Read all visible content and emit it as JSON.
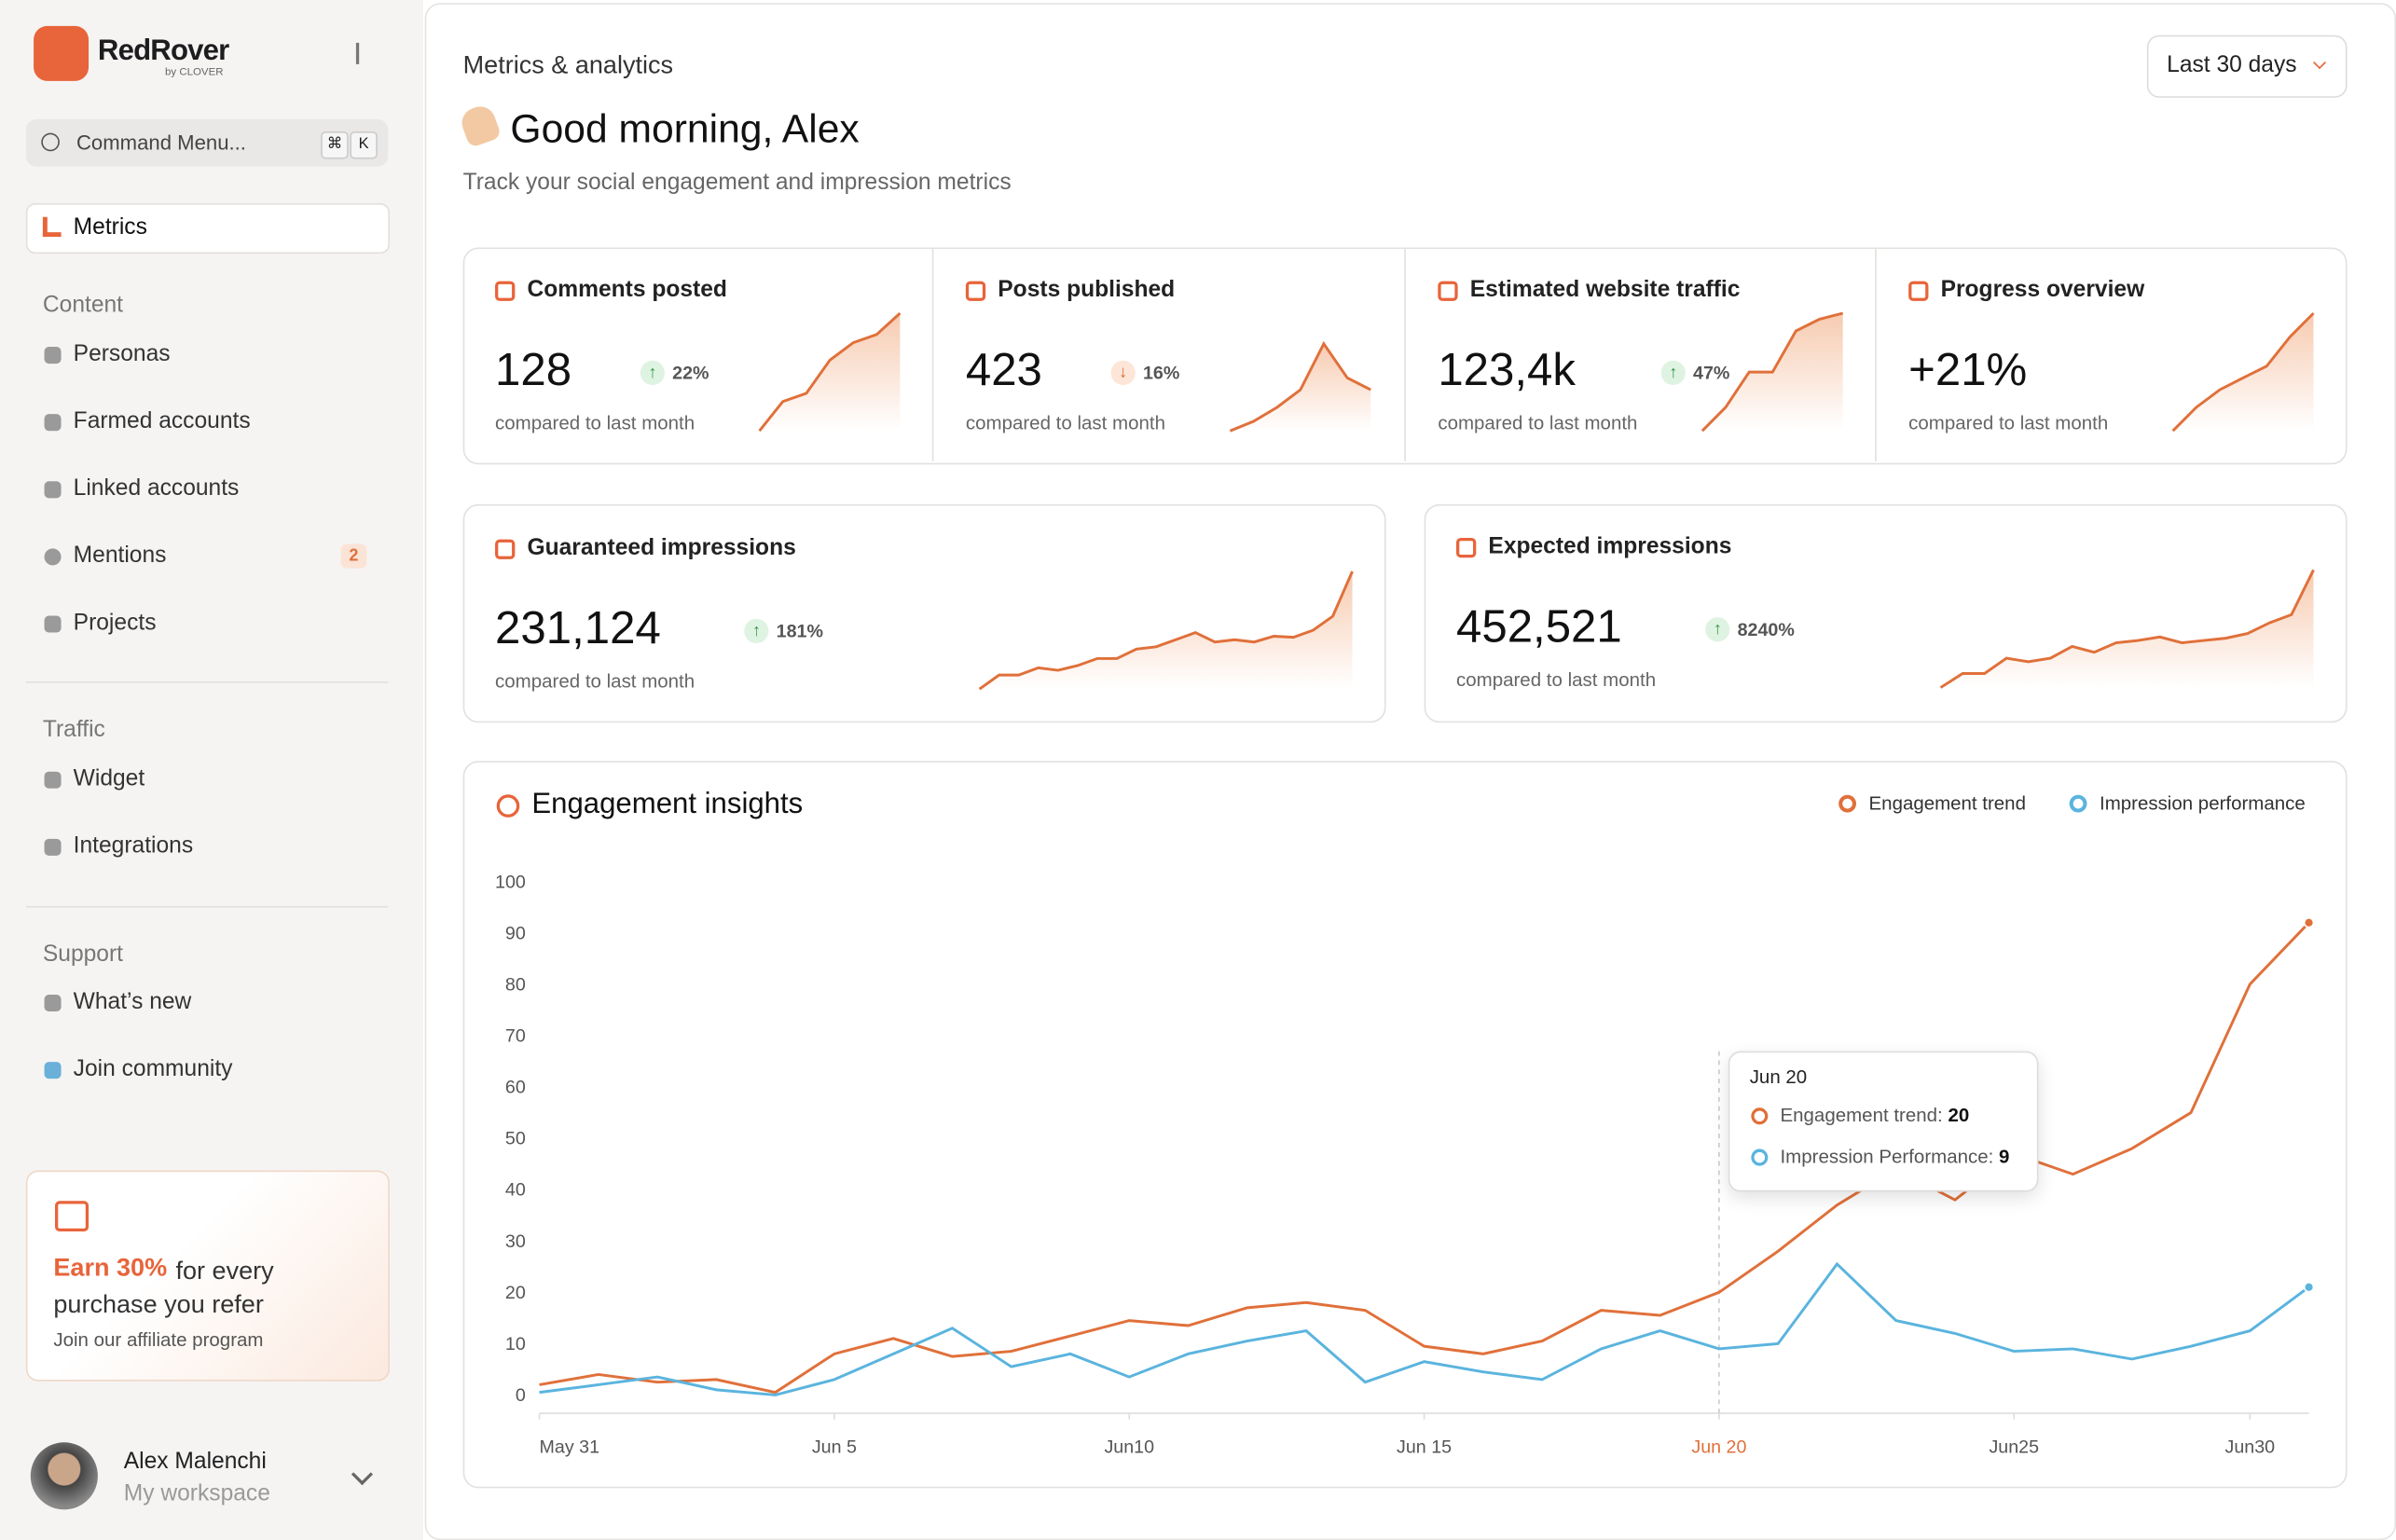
{
  "sidebar": {
    "brand": "RedRover",
    "brand_sub": "by CLOVER",
    "search": "Command Menu...",
    "keys": [
      "⌘",
      "K"
    ],
    "active": "Metrics",
    "sections": [
      {
        "title": "Content",
        "items": [
          "Personas",
          "Farmed accounts",
          "Linked accounts",
          "Mentions",
          "Projects"
        ]
      },
      {
        "title": "Traffic",
        "items": [
          "Widget",
          "Integrations"
        ]
      },
      {
        "title": "Support",
        "items": [
          "What’s new",
          "Join community"
        ]
      }
    ],
    "mentions_badge": "2",
    "promo": {
      "highlight": "Earn 30%",
      "text": "for every purchase you refer",
      "sub": "Join our affiliate program"
    },
    "user": {
      "name": "Alex Malenchi",
      "workspace": "My workspace"
    }
  },
  "header": {
    "breadcrumb": "Metrics & analytics",
    "greeting": "Good morning, Alex",
    "subtitle": "Track your social engagement and impression metrics",
    "range": "Last 30 days"
  },
  "kpis": [
    {
      "title": "Comments posted",
      "value": "128",
      "change": "22%",
      "direction": "up",
      "note": "compared to last month",
      "spark": [
        0,
        25,
        32,
        60,
        75,
        82,
        100
      ]
    },
    {
      "title": "Posts published",
      "value": "423",
      "change": "16%",
      "direction": "down",
      "note": "compared to last month",
      "spark": [
        0,
        8,
        20,
        35,
        74,
        45,
        35
      ]
    },
    {
      "title": "Estimated website traffic",
      "value": "123,4k",
      "change": "47%",
      "direction": "up",
      "note": "compared to last month",
      "spark": [
        0,
        20,
        50,
        50,
        85,
        95,
        100
      ]
    },
    {
      "title": "Progress overview",
      "value": "+21%",
      "note": "compared to last month",
      "spark": [
        0,
        20,
        35,
        45,
        55,
        80,
        100
      ]
    },
    {
      "title": "Guaranteed impressions",
      "value": "231,124",
      "change": "181%",
      "direction": "up",
      "note": "compared to last month",
      "spark": [
        0,
        12,
        12,
        18,
        16,
        20,
        26,
        26,
        34,
        36,
        42,
        48,
        40,
        42,
        40,
        45,
        44,
        50,
        62,
        100
      ]
    },
    {
      "title": "Expected impressions",
      "value": "452,521",
      "change": "8240%",
      "direction": "up",
      "note": "compared to last month",
      "spark": [
        0,
        12,
        12,
        25,
        22,
        25,
        35,
        30,
        38,
        40,
        43,
        38,
        40,
        42,
        46,
        55,
        62,
        100
      ]
    }
  ],
  "chart_data": {
    "type": "line",
    "title": "Engagement insights",
    "categories": [
      "May 31",
      null,
      null,
      null,
      null,
      "Jun 5",
      null,
      null,
      null,
      null,
      "Jun10",
      null,
      null,
      null,
      null,
      "Jun 15",
      null,
      null,
      null,
      null,
      "Jun 20",
      null,
      null,
      null,
      null,
      "Jun25",
      null,
      null,
      null,
      "Jun30",
      null
    ],
    "series": [
      {
        "name": "Engagement trend",
        "color": "#e0703a",
        "values": [
          2,
          4,
          2.5,
          3,
          0.5,
          8,
          11,
          7.5,
          8.5,
          11.5,
          14.5,
          13.5,
          17,
          18,
          16.5,
          9.5,
          8,
          10.5,
          16.5,
          15.5,
          20,
          28,
          37,
          44,
          38,
          47,
          43,
          48,
          55,
          80,
          92
        ]
      },
      {
        "name": "Impression performance",
        "color": "#5ab4de",
        "values": [
          0.5,
          2,
          3.5,
          1,
          0,
          3,
          8,
          13,
          5.5,
          8,
          3.5,
          8,
          10.5,
          12.5,
          2.5,
          6.5,
          4.5,
          3,
          9,
          12.5,
          9,
          10,
          25.5,
          14.5,
          12,
          8.5,
          9,
          7,
          9.5,
          12.5,
          21
        ]
      }
    ],
    "ylim": [
      0,
      100
    ],
    "yticks": [
      0,
      10,
      20,
      30,
      40,
      50,
      60,
      70,
      80,
      90,
      100
    ],
    "tooltip": {
      "title": "Jun 20",
      "rows": [
        {
          "label": "Engagement trend:",
          "value": 20
        },
        {
          "label": "Impression Performance:",
          "value": 9
        }
      ]
    }
  }
}
